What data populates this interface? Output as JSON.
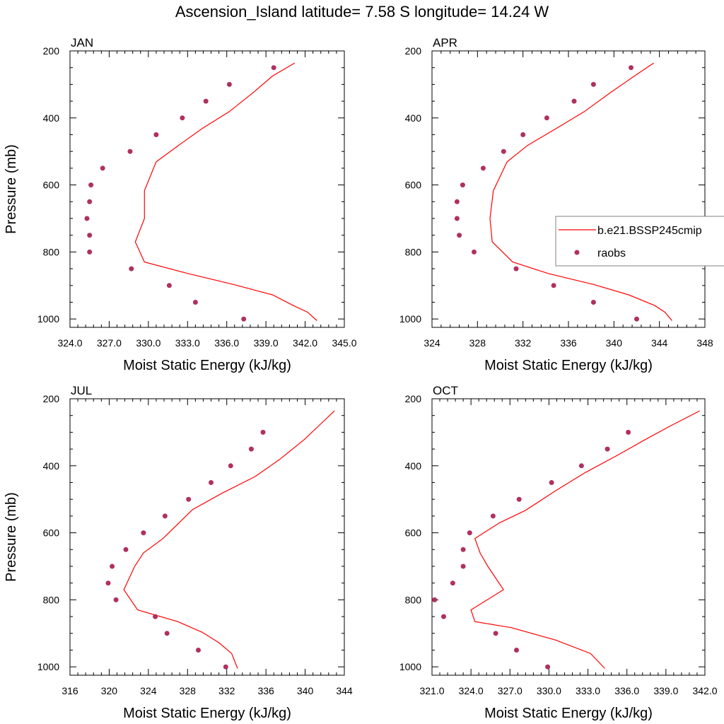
{
  "title": "Ascension_Island  latitude= 7.58 S longitude= 14.24 W",
  "legend": {
    "line_label": "b.e21.BSSP245cmip",
    "marker_label": "raobs",
    "line_color": "#ff0000",
    "marker_color": "#b03060"
  },
  "chart_data": [
    {
      "type": "line",
      "panel": "JAN",
      "title": "JAN",
      "xlabel": "Moist Static Energy (kJ/kg)",
      "ylabel": "Pressure (mb)",
      "xlim": [
        324.0,
        345.0
      ],
      "ylim": [
        1025,
        200
      ],
      "y_reversed": true,
      "xticks": [
        "324.0",
        "327.0",
        "330.0",
        "333.0",
        "336.0",
        "339.0",
        "342.0",
        "345.0"
      ],
      "yticks": [
        "200",
        "400",
        "600",
        "800",
        "1000"
      ],
      "series": [
        {
          "name": "b.e21.BSSP245cmip",
          "kind": "line",
          "x": [
            341.2,
            339.5,
            338.1,
            336.2,
            334.1,
            332.3,
            330.6,
            329.7,
            329.7,
            329.7,
            329.0,
            329.7,
            333.1,
            336.5,
            339.5,
            341.1,
            342.2,
            342.9
          ],
          "y": [
            236,
            275,
            322,
            381,
            432,
            482,
            531,
            617,
            660,
            700,
            770,
            830,
            865,
            897,
            928,
            960,
            980,
            1005
          ]
        },
        {
          "name": "raobs",
          "kind": "scatter",
          "x": [
            339.6,
            336.2,
            334.4,
            332.6,
            330.6,
            328.6,
            326.5,
            325.6,
            325.5,
            325.3,
            325.5,
            325.5,
            328.7,
            331.6,
            333.6,
            337.3
          ],
          "y": [
            250,
            300,
            350,
            400,
            450,
            500,
            550,
            600,
            650,
            700,
            750,
            800,
            850,
            900,
            950,
            1000
          ]
        }
      ]
    },
    {
      "type": "line",
      "panel": "APR",
      "title": "APR",
      "xlabel": "Moist Static Energy (kJ/kg)",
      "ylabel": "",
      "xlim": [
        324,
        348
      ],
      "ylim": [
        1025,
        200
      ],
      "y_reversed": true,
      "xticks": [
        "324",
        "328",
        "332",
        "336",
        "340",
        "344",
        "348"
      ],
      "yticks": [
        "200",
        "400",
        "600",
        "800",
        "1000"
      ],
      "series": [
        {
          "name": "b.e21.BSSP245cmip",
          "kind": "line",
          "x": [
            343.5,
            341.8,
            339.8,
            337.4,
            334.9,
            332.4,
            330.6,
            329.4,
            329.1,
            329.3,
            331.1,
            334.3,
            338.2,
            341.3,
            343.6,
            344.5,
            345.1
          ],
          "y": [
            236,
            275,
            322,
            381,
            432,
            482,
            531,
            617,
            700,
            770,
            830,
            865,
            897,
            928,
            960,
            980,
            1005
          ]
        },
        {
          "name": "raobs",
          "kind": "scatter",
          "x": [
            341.5,
            338.2,
            336.5,
            334.1,
            332.0,
            330.3,
            328.5,
            326.7,
            326.2,
            326.2,
            326.4,
            327.7,
            331.4,
            334.7,
            338.2,
            342.0
          ],
          "y": [
            250,
            300,
            350,
            400,
            450,
            500,
            550,
            600,
            650,
            700,
            750,
            800,
            850,
            900,
            950,
            1000
          ]
        }
      ]
    },
    {
      "type": "line",
      "panel": "JUL",
      "title": "JUL",
      "xlabel": "Moist Static Energy (kJ/kg)",
      "ylabel": "Pressure (mb)",
      "xlim": [
        316,
        344
      ],
      "ylim": [
        1025,
        200
      ],
      "y_reversed": true,
      "xticks": [
        "316",
        "320",
        "324",
        "328",
        "332",
        "336",
        "340",
        "344"
      ],
      "yticks": [
        "200",
        "400",
        "600",
        "800",
        "1000"
      ],
      "series": [
        {
          "name": "b.e21.BSSP245cmip",
          "kind": "line",
          "x": [
            343.0,
            341.6,
            339.9,
            337.4,
            334.9,
            331.5,
            328.5,
            325.5,
            323.5,
            322.6,
            321.5,
            322.9,
            327.0,
            329.5,
            331.2,
            332.5,
            333.1
          ],
          "y": [
            236,
            275,
            322,
            381,
            432,
            482,
            531,
            617,
            660,
            700,
            770,
            830,
            865,
            897,
            928,
            960,
            1005
          ]
        },
        {
          "name": "raobs",
          "kind": "scatter",
          "x": [
            335.7,
            334.5,
            332.4,
            330.4,
            328.1,
            325.7,
            323.5,
            321.7,
            320.3,
            319.9,
            320.7,
            324.7,
            325.9,
            329.1,
            331.9
          ],
          "y": [
            300,
            350,
            400,
            450,
            500,
            550,
            600,
            650,
            700,
            750,
            800,
            850,
            900,
            950,
            1000
          ]
        }
      ]
    },
    {
      "type": "line",
      "panel": "OCT",
      "title": "OCT",
      "xlabel": "Moist Static Energy (kJ/kg)",
      "ylabel": "",
      "xlim": [
        321.0,
        342.0
      ],
      "ylim": [
        1025,
        200
      ],
      "y_reversed": true,
      "xticks": [
        "321.0",
        "324.0",
        "327.0",
        "330.0",
        "333.0",
        "336.0",
        "339.0",
        "342.0"
      ],
      "yticks": [
        "200",
        "400",
        "600",
        "800",
        "1000"
      ],
      "series": [
        {
          "name": "b.e21.BSSP245cmip",
          "kind": "line",
          "x": [
            341.6,
            339.4,
            337.4,
            335.3,
            332.8,
            330.5,
            328.2,
            326.2,
            324.3,
            324.7,
            325.3,
            326.5,
            324.0,
            324.3,
            327.1,
            330.5,
            333.2,
            334.3
          ],
          "y": [
            236,
            280,
            322,
            368,
            420,
            475,
            533,
            570,
            617,
            660,
            700,
            770,
            830,
            865,
            883,
            920,
            960,
            1005
          ]
        },
        {
          "name": "raobs",
          "kind": "scatter",
          "x": [
            336.1,
            334.5,
            332.5,
            330.2,
            327.7,
            325.7,
            323.9,
            323.4,
            323.4,
            322.6,
            321.2,
            321.9,
            325.9,
            327.5,
            329.9
          ],
          "y": [
            300,
            350,
            400,
            450,
            500,
            550,
            600,
            650,
            700,
            750,
            800,
            850,
            900,
            950,
            1000
          ]
        }
      ]
    }
  ]
}
